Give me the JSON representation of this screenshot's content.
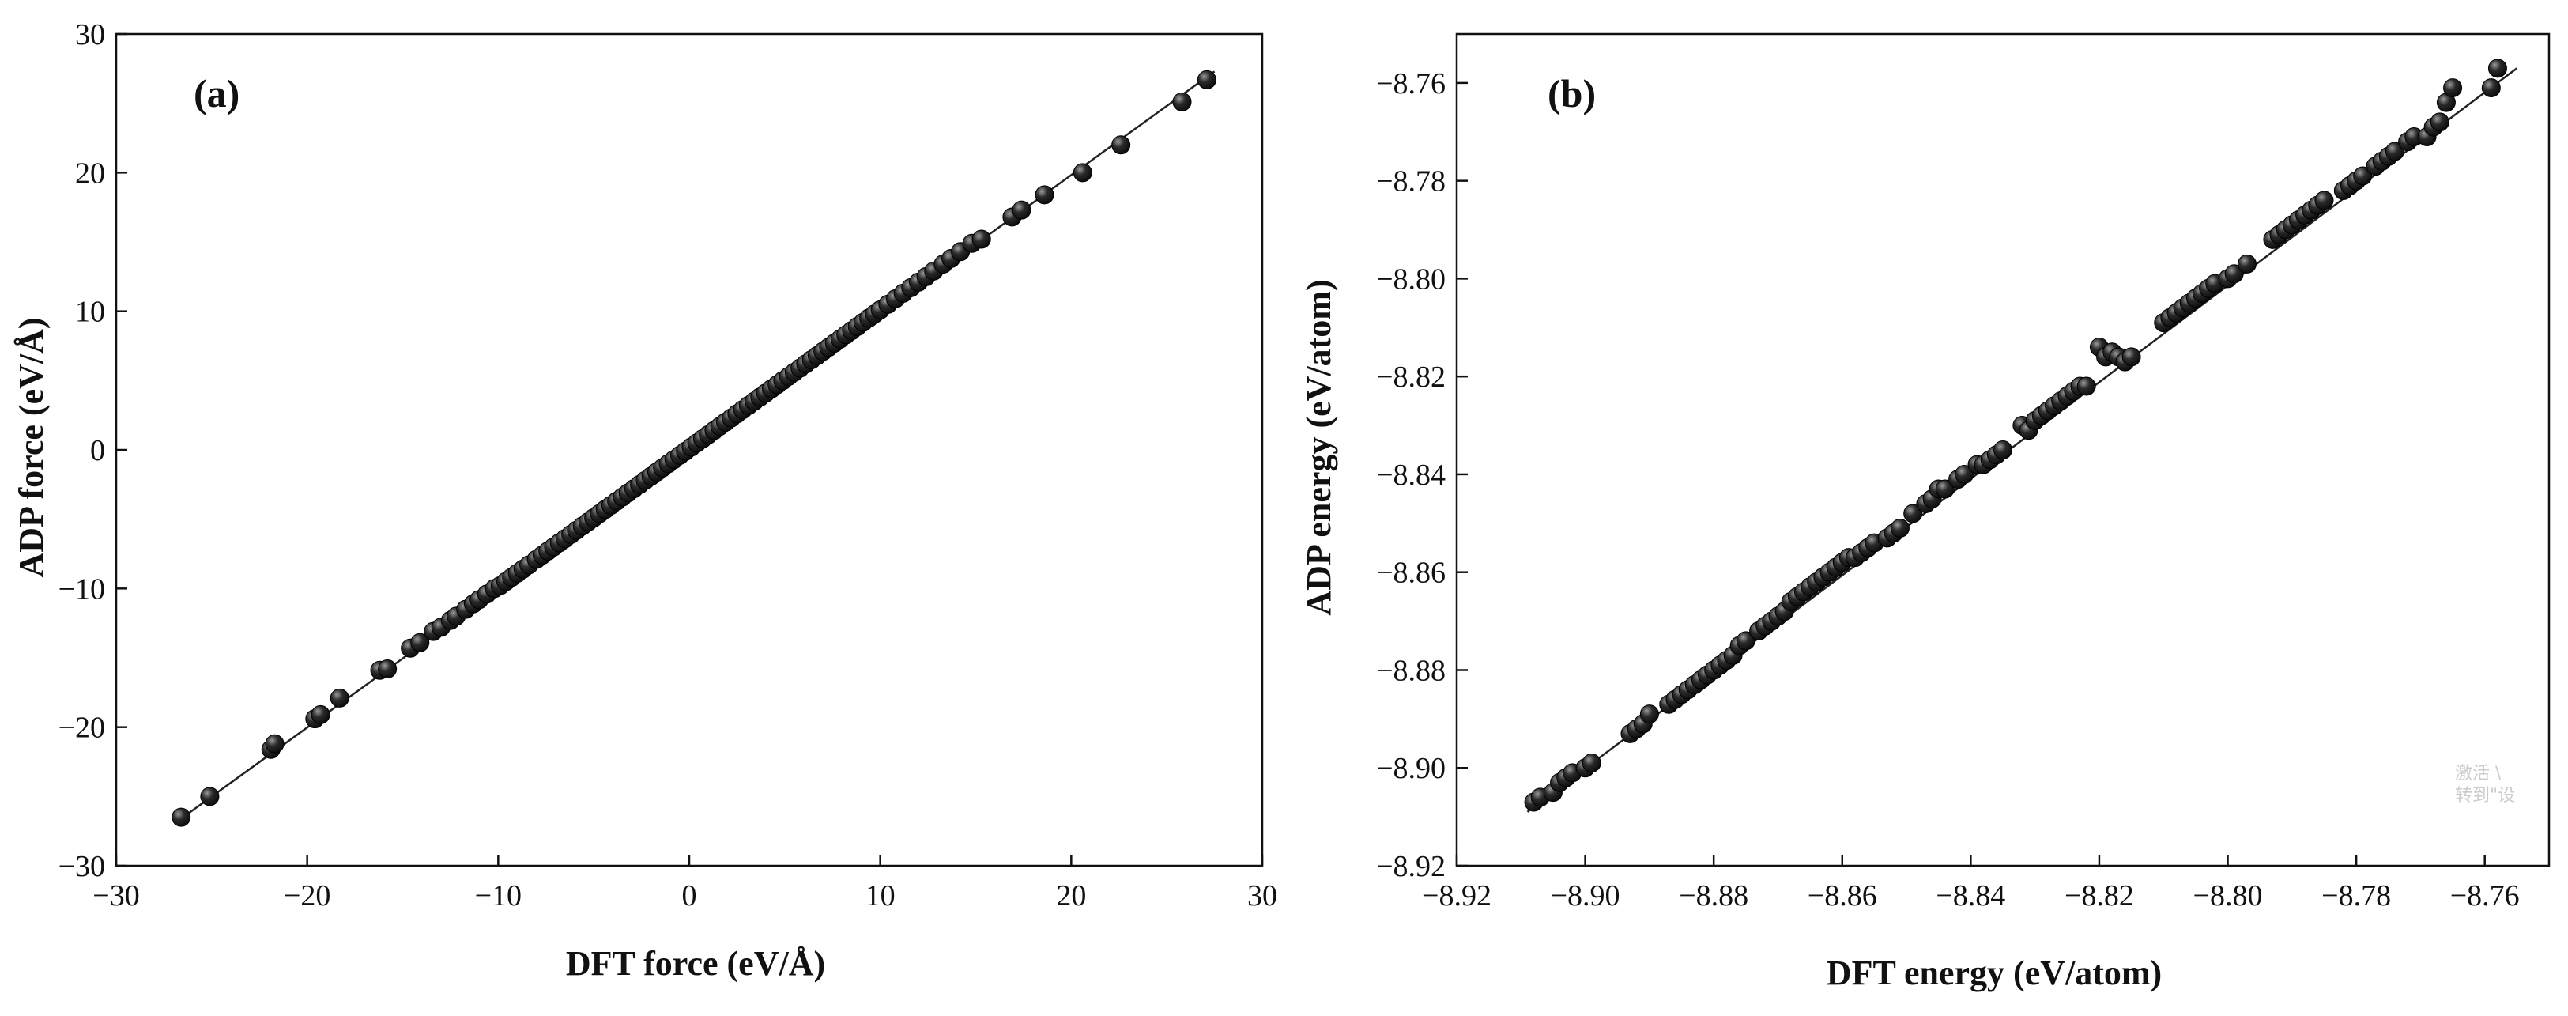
{
  "colors": {
    "marker": "#0d0d0d",
    "highlight": "#9a9a9a",
    "axis": "#111111",
    "fit_line": "#222222"
  },
  "watermark": {
    "line1": "激活 \\",
    "line2": "转到\"设"
  },
  "chart_data": [
    {
      "type": "scatter",
      "panel_label": "(a)",
      "xlabel": "DFT force (eV/Å)",
      "ylabel": "ADP force (eV/Å)",
      "xlim": [
        -30,
        30
      ],
      "ylim": [
        -30,
        30
      ],
      "xticks": [
        -30,
        -20,
        -10,
        0,
        10,
        20,
        30
      ],
      "yticks": [
        -30,
        -20,
        -10,
        0,
        10,
        20,
        30
      ],
      "xtick_labels": [
        "−30",
        "−20",
        "−10",
        "0",
        "10",
        "20",
        "30"
      ],
      "ytick_labels": [
        "−30",
        "−20",
        "−10",
        "0",
        "10",
        "20",
        "30"
      ],
      "fit_line": {
        "x": [
          -26.8,
          27.5
        ],
        "y": [
          -26.8,
          27.3
        ]
      },
      "x": [
        -26.6,
        -25.1,
        -21.9,
        -21.7,
        -19.6,
        -19.3,
        -18.3,
        -16.2,
        -15.8,
        -14.6,
        -14.1,
        -13.4,
        -13.0,
        -12.5,
        -12.2,
        -11.7,
        -11.3,
        -11.0,
        -10.6,
        -10.2,
        -9.9,
        -9.6,
        -9.3,
        -9.0,
        -8.7,
        -8.4,
        -8.0,
        -7.7,
        -7.4,
        -7.1,
        -6.8,
        -6.5,
        -6.2,
        -5.9,
        -5.6,
        -5.3,
        -5.0,
        -4.7,
        -4.4,
        -4.1,
        -3.8,
        -3.5,
        -3.2,
        -2.9,
        -2.6,
        -2.3,
        -2.0,
        -1.7,
        -1.4,
        -1.1,
        -0.8,
        -0.5,
        -0.2,
        0.1,
        0.4,
        0.7,
        1.0,
        1.3,
        1.6,
        1.9,
        2.2,
        2.5,
        2.8,
        3.1,
        3.4,
        3.7,
        4.0,
        4.3,
        4.6,
        4.9,
        5.2,
        5.5,
        5.8,
        6.1,
        6.4,
        6.7,
        7.0,
        7.3,
        7.6,
        7.9,
        8.2,
        8.5,
        8.8,
        9.1,
        9.4,
        9.7,
        10.0,
        10.4,
        10.8,
        11.2,
        11.6,
        12.0,
        12.4,
        12.8,
        13.3,
        13.7,
        14.2,
        14.8,
        15.3,
        16.9,
        17.4,
        18.6,
        20.6,
        22.6,
        25.8,
        27.1
      ],
      "y": [
        -26.5,
        -25.0,
        -21.6,
        -21.2,
        -19.4,
        -19.1,
        -17.9,
        -15.9,
        -15.8,
        -14.3,
        -13.9,
        -13.1,
        -12.8,
        -12.3,
        -12.0,
        -11.5,
        -11.1,
        -10.8,
        -10.4,
        -10.0,
        -9.8,
        -9.5,
        -9.2,
        -8.9,
        -8.6,
        -8.3,
        -7.9,
        -7.6,
        -7.3,
        -7.0,
        -6.7,
        -6.4,
        -6.1,
        -5.8,
        -5.5,
        -5.2,
        -4.9,
        -4.6,
        -4.3,
        -4.0,
        -3.7,
        -3.4,
        -3.1,
        -2.8,
        -2.5,
        -2.2,
        -1.9,
        -1.6,
        -1.3,
        -1.0,
        -0.7,
        -0.4,
        -0.1,
        0.2,
        0.5,
        0.8,
        1.1,
        1.4,
        1.7,
        2.0,
        2.3,
        2.6,
        2.9,
        3.2,
        3.5,
        3.8,
        4.1,
        4.4,
        4.7,
        5.0,
        5.3,
        5.6,
        5.9,
        6.2,
        6.5,
        6.8,
        7.1,
        7.4,
        7.7,
        8.0,
        8.3,
        8.6,
        8.9,
        9.2,
        9.5,
        9.8,
        10.1,
        10.5,
        10.9,
        11.3,
        11.7,
        12.1,
        12.5,
        12.9,
        13.4,
        13.8,
        14.3,
        14.9,
        15.2,
        16.8,
        17.3,
        18.4,
        20.0,
        22.0,
        25.1,
        26.7
      ]
    },
    {
      "type": "scatter",
      "panel_label": "(b)",
      "xlabel": "DFT energy (eV/atom)",
      "ylabel": "ADP energy (eV/atom)",
      "xlim": [
        -8.92,
        -8.75
      ],
      "ylim": [
        -8.92,
        -8.75
      ],
      "xticks": [
        -8.92,
        -8.9,
        -8.88,
        -8.86,
        -8.84,
        -8.82,
        -8.8,
        -8.78,
        -8.76
      ],
      "yticks": [
        -8.92,
        -8.9,
        -8.88,
        -8.86,
        -8.84,
        -8.82,
        -8.8,
        -8.78,
        -8.76
      ],
      "xtick_labels": [
        "−8.92",
        "−8.90",
        "−8.88",
        "−8.86",
        "−8.84",
        "−8.82",
        "−8.80",
        "−8.78",
        "−8.76"
      ],
      "ytick_labels": [
        "−8.92",
        "−8.90",
        "−8.88",
        "−8.86",
        "−8.84",
        "−8.82",
        "−8.80",
        "−8.78",
        "−8.76"
      ],
      "fit_line": {
        "x": [
          -8.909,
          -8.755
        ],
        "y": [
          -8.909,
          -8.757
        ]
      },
      "x": [
        -8.908,
        -8.907,
        -8.905,
        -8.904,
        -8.903,
        -8.902,
        -8.9,
        -8.899,
        -8.893,
        -8.892,
        -8.891,
        -8.89,
        -8.887,
        -8.886,
        -8.885,
        -8.884,
        -8.883,
        -8.882,
        -8.881,
        -8.88,
        -8.879,
        -8.878,
        -8.877,
        -8.876,
        -8.875,
        -8.873,
        -8.872,
        -8.871,
        -8.87,
        -8.869,
        -8.868,
        -8.867,
        -8.866,
        -8.865,
        -8.864,
        -8.863,
        -8.862,
        -8.861,
        -8.86,
        -8.859,
        -8.858,
        -8.857,
        -8.856,
        -8.855,
        -8.853,
        -8.852,
        -8.851,
        -8.849,
        -8.847,
        -8.846,
        -8.845,
        -8.844,
        -8.842,
        -8.841,
        -8.839,
        -8.838,
        -8.837,
        -8.836,
        -8.835,
        -8.832,
        -8.831,
        -8.83,
        -8.829,
        -8.828,
        -8.827,
        -8.826,
        -8.825,
        -8.824,
        -8.823,
        -8.822,
        -8.82,
        -8.819,
        -8.818,
        -8.817,
        -8.816,
        -8.815,
        -8.81,
        -8.809,
        -8.808,
        -8.807,
        -8.806,
        -8.805,
        -8.804,
        -8.803,
        -8.802,
        -8.8,
        -8.799,
        -8.797,
        -8.793,
        -8.792,
        -8.791,
        -8.79,
        -8.789,
        -8.788,
        -8.787,
        -8.786,
        -8.785,
        -8.782,
        -8.781,
        -8.78,
        -8.779,
        -8.777,
        -8.776,
        -8.775,
        -8.774,
        -8.772,
        -8.771,
        -8.769,
        -8.768,
        -8.767,
        -8.766,
        -8.765,
        -8.759,
        -8.758
      ],
      "y": [
        -8.907,
        -8.906,
        -8.905,
        -8.903,
        -8.902,
        -8.901,
        -8.9,
        -8.899,
        -8.893,
        -8.892,
        -8.891,
        -8.889,
        -8.887,
        -8.886,
        -8.885,
        -8.884,
        -8.883,
        -8.882,
        -8.881,
        -8.88,
        -8.879,
        -8.878,
        -8.877,
        -8.875,
        -8.874,
        -8.872,
        -8.871,
        -8.87,
        -8.869,
        -8.868,
        -8.866,
        -8.865,
        -8.864,
        -8.863,
        -8.862,
        -8.861,
        -8.86,
        -8.859,
        -8.858,
        -8.857,
        -8.857,
        -8.856,
        -8.855,
        -8.854,
        -8.853,
        -8.852,
        -8.851,
        -8.848,
        -8.846,
        -8.845,
        -8.843,
        -8.843,
        -8.841,
        -8.84,
        -8.838,
        -8.838,
        -8.837,
        -8.836,
        -8.835,
        -8.83,
        -8.831,
        -8.829,
        -8.828,
        -8.827,
        -8.826,
        -8.825,
        -8.824,
        -8.823,
        -8.822,
        -8.822,
        -8.814,
        -8.816,
        -8.815,
        -8.816,
        -8.817,
        -8.816,
        -8.809,
        -8.808,
        -8.807,
        -8.806,
        -8.805,
        -8.804,
        -8.803,
        -8.802,
        -8.801,
        -8.8,
        -8.799,
        -8.797,
        -8.792,
        -8.791,
        -8.79,
        -8.789,
        -8.788,
        -8.787,
        -8.786,
        -8.785,
        -8.784,
        -8.782,
        -8.781,
        -8.78,
        -8.779,
        -8.777,
        -8.776,
        -8.775,
        -8.774,
        -8.772,
        -8.771,
        -8.771,
        -8.769,
        -8.768,
        -8.764,
        -8.761,
        -8.761,
        -8.757
      ]
    }
  ]
}
